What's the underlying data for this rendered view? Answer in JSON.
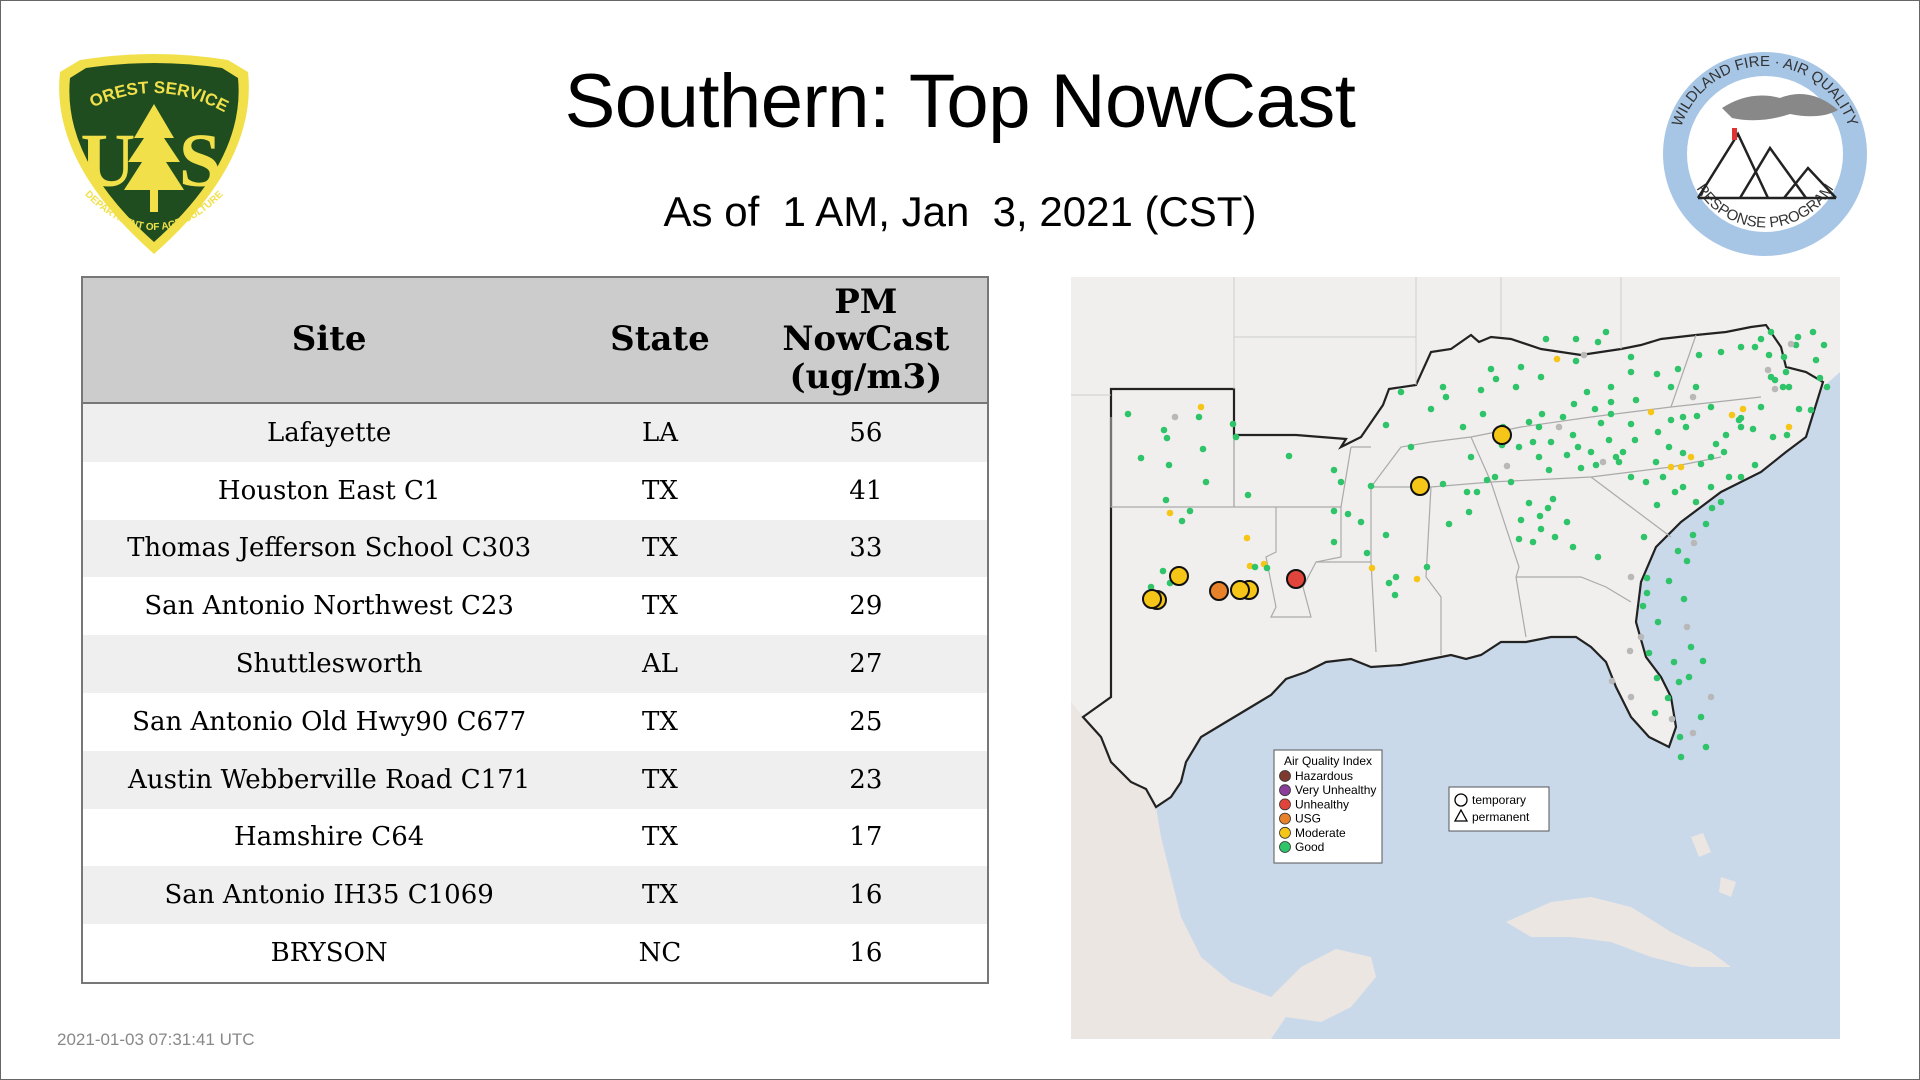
{
  "title": "Southern: Top NowCast",
  "subtitle": "As of  1 AM, Jan  3, 2021 (CST)",
  "timestamp": "2021-01-03 07:31:41 UTC",
  "logos": {
    "left": {
      "icon": "forest-service-shield-icon",
      "top_text": "FOREST SERVICE",
      "letters": "U S",
      "bottom_text": "DEPARTMENT OF AGRICULTURE",
      "colors": {
        "green": "#1f4d20",
        "yellow": "#f1e04a"
      }
    },
    "right": {
      "icon": "wildland-fire-air-quality-seal-icon",
      "top_text": "WILDLAND FIRE · AIR QUALITY",
      "bottom_text": "RESPONSE PROGRAM",
      "colors": {
        "ring": "#a7c6e6",
        "text": "#333333"
      }
    }
  },
  "table": {
    "headers": {
      "site": "Site",
      "state": "State",
      "pm_line1": "PM",
      "pm_line2": "NowCast",
      "pm_line3": "(ug/m3)"
    },
    "rows": [
      {
        "site": "Lafayette",
        "state": "LA",
        "value": "56"
      },
      {
        "site": "Houston East C1",
        "state": "TX",
        "value": "41"
      },
      {
        "site": "Thomas Jefferson School C303",
        "state": "TX",
        "value": "33"
      },
      {
        "site": "San Antonio Northwest C23",
        "state": "TX",
        "value": "29"
      },
      {
        "site": "Shuttlesworth",
        "state": "AL",
        "value": "27"
      },
      {
        "site": "San Antonio Old Hwy90 C677",
        "state": "TX",
        "value": "25"
      },
      {
        "site": "Austin Webberville Road C171",
        "state": "TX",
        "value": "23"
      },
      {
        "site": "Hamshire C64",
        "state": "TX",
        "value": "17"
      },
      {
        "site": "San Antonio IH35 C1069",
        "state": "TX",
        "value": "16"
      },
      {
        "site": "BRYSON",
        "state": "NC",
        "value": "16"
      }
    ]
  },
  "map": {
    "colors": {
      "water": "#c9d9ea",
      "land": "#f1efed",
      "border": "#222222",
      "state_line": "#aaaaaa"
    },
    "legend_aqi": {
      "title": "Air Quality Index",
      "items": [
        {
          "label": "Hazardous",
          "color": "#7e3a30"
        },
        {
          "label": "Very Unhealthy",
          "color": "#8a3e9a"
        },
        {
          "label": "Unhealthy",
          "color": "#e0443a"
        },
        {
          "label": "USG",
          "color": "#e8822a"
        },
        {
          "label": "Moderate",
          "color": "#f5c518"
        },
        {
          "label": "Good",
          "color": "#2fc46a"
        }
      ]
    },
    "legend_type": {
      "items": [
        {
          "label": "temporary",
          "icon": "circle-outline-icon"
        },
        {
          "label": "permanent",
          "icon": "triangle-outline-icon"
        }
      ]
    }
  }
}
